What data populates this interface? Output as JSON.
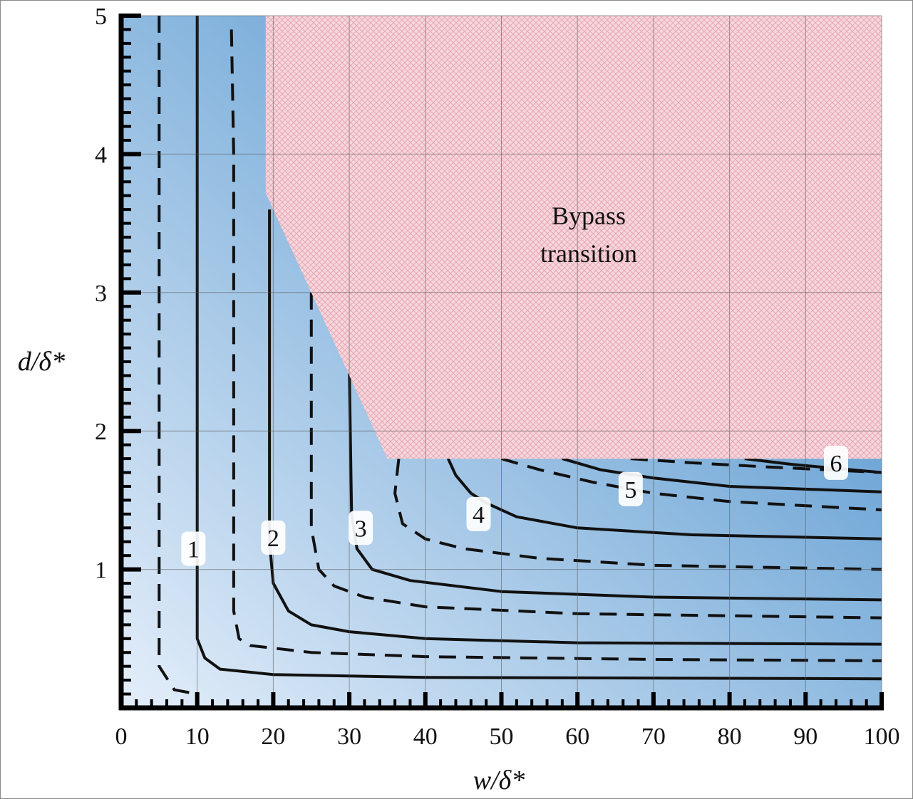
{
  "chart_data": {
    "type": "contour",
    "xlabel": "w/δ*",
    "ylabel": "d/δ*",
    "xlim": [
      0,
      100
    ],
    "ylim": [
      0,
      5
    ],
    "xticks": [
      "0",
      "10",
      "20",
      "30",
      "40",
      "50",
      "60",
      "70",
      "80",
      "90",
      "100"
    ],
    "yticks": [
      "1",
      "2",
      "3",
      "4",
      "5"
    ],
    "grid": true,
    "colors": {
      "low": "#e4eefa",
      "high": "#3a86c6",
      "bypass_fill": "#f6d6dc",
      "bypass_hatch": "#e8a9b4"
    },
    "bypass_region": {
      "label_line1": "Bypass",
      "label_line2": "transition",
      "boundary": [
        [
          19,
          5
        ],
        [
          19,
          3.72
        ],
        [
          35,
          1.8
        ],
        [
          100,
          1.8
        ],
        [
          100,
          5
        ]
      ]
    },
    "contours": [
      {
        "label": "",
        "style": "dashed",
        "points": [
          [
            5,
            5
          ],
          [
            5,
            0.3
          ],
          [
            7,
            0.13
          ],
          [
            10,
            0.1
          ]
        ]
      },
      {
        "label": "1",
        "style": "solid",
        "label_at": [
          9.5,
          1.15
        ],
        "points": [
          [
            10,
            5
          ],
          [
            10,
            0.5
          ],
          [
            11,
            0.36
          ],
          [
            13,
            0.28
          ],
          [
            20,
            0.24
          ],
          [
            40,
            0.22
          ],
          [
            100,
            0.21
          ]
        ]
      },
      {
        "label": "",
        "style": "dashed",
        "points": [
          [
            14.5,
            4.9
          ],
          [
            14.8,
            4.0
          ],
          [
            14.8,
            0.7
          ],
          [
            15.5,
            0.5
          ],
          [
            17,
            0.45
          ],
          [
            25,
            0.4
          ],
          [
            40,
            0.37
          ],
          [
            70,
            0.35
          ],
          [
            100,
            0.34
          ]
        ]
      },
      {
        "label": "2",
        "style": "solid",
        "label_at": [
          20,
          1.23
        ],
        "points": [
          [
            19.5,
            3.6
          ],
          [
            19.5,
            1.2
          ],
          [
            20,
            0.9
          ],
          [
            22,
            0.7
          ],
          [
            25,
            0.6
          ],
          [
            30,
            0.55
          ],
          [
            40,
            0.5
          ],
          [
            60,
            0.47
          ],
          [
            100,
            0.46
          ]
        ]
      },
      {
        "label": "",
        "style": "dashed",
        "points": [
          [
            25,
            3.0
          ],
          [
            25,
            1.3
          ],
          [
            26,
            1.0
          ],
          [
            28,
            0.88
          ],
          [
            32,
            0.8
          ],
          [
            40,
            0.73
          ],
          [
            60,
            0.68
          ],
          [
            100,
            0.65
          ]
        ]
      },
      {
        "label": "3",
        "style": "solid",
        "label_at": [
          31.5,
          1.3
        ],
        "points": [
          [
            30,
            2.45
          ],
          [
            30.3,
            1.4
          ],
          [
            31,
            1.15
          ],
          [
            33,
            1.0
          ],
          [
            38,
            0.92
          ],
          [
            50,
            0.84
          ],
          [
            70,
            0.8
          ],
          [
            100,
            0.78
          ]
        ]
      },
      {
        "label": "",
        "style": "dashed",
        "points": [
          [
            36.5,
            1.8
          ],
          [
            36,
            1.55
          ],
          [
            37,
            1.33
          ],
          [
            40,
            1.22
          ],
          [
            45,
            1.15
          ],
          [
            55,
            1.08
          ],
          [
            70,
            1.03
          ],
          [
            100,
            1.0
          ]
        ]
      },
      {
        "label": "4",
        "style": "solid",
        "label_at": [
          47,
          1.4
        ],
        "points": [
          [
            43,
            1.8
          ],
          [
            44,
            1.68
          ],
          [
            46,
            1.55
          ],
          [
            48,
            1.48
          ],
          [
            52,
            1.38
          ],
          [
            60,
            1.3
          ],
          [
            75,
            1.25
          ],
          [
            100,
            1.22
          ]
        ]
      },
      {
        "label": "",
        "style": "dashed",
        "points": [
          [
            50,
            1.8
          ],
          [
            55,
            1.72
          ],
          [
            62,
            1.63
          ],
          [
            70,
            1.55
          ],
          [
            80,
            1.49
          ],
          [
            100,
            1.43
          ]
        ]
      },
      {
        "label": "5",
        "style": "solid",
        "label_at": [
          67,
          1.58
        ],
        "points": [
          [
            58,
            1.8
          ],
          [
            63,
            1.72
          ],
          [
            70,
            1.66
          ],
          [
            80,
            1.6
          ],
          [
            100,
            1.56
          ]
        ]
      },
      {
        "label": "",
        "style": "dashed",
        "points": [
          [
            67,
            1.8
          ],
          [
            75,
            1.77
          ],
          [
            85,
            1.74
          ],
          [
            100,
            1.7
          ]
        ]
      },
      {
        "label": "6",
        "style": "solid",
        "label_at": [
          94,
          1.77
        ],
        "points": [
          [
            82,
            1.8
          ],
          [
            88,
            1.76
          ],
          [
            94,
            1.73
          ],
          [
            100,
            1.7
          ]
        ]
      }
    ]
  }
}
